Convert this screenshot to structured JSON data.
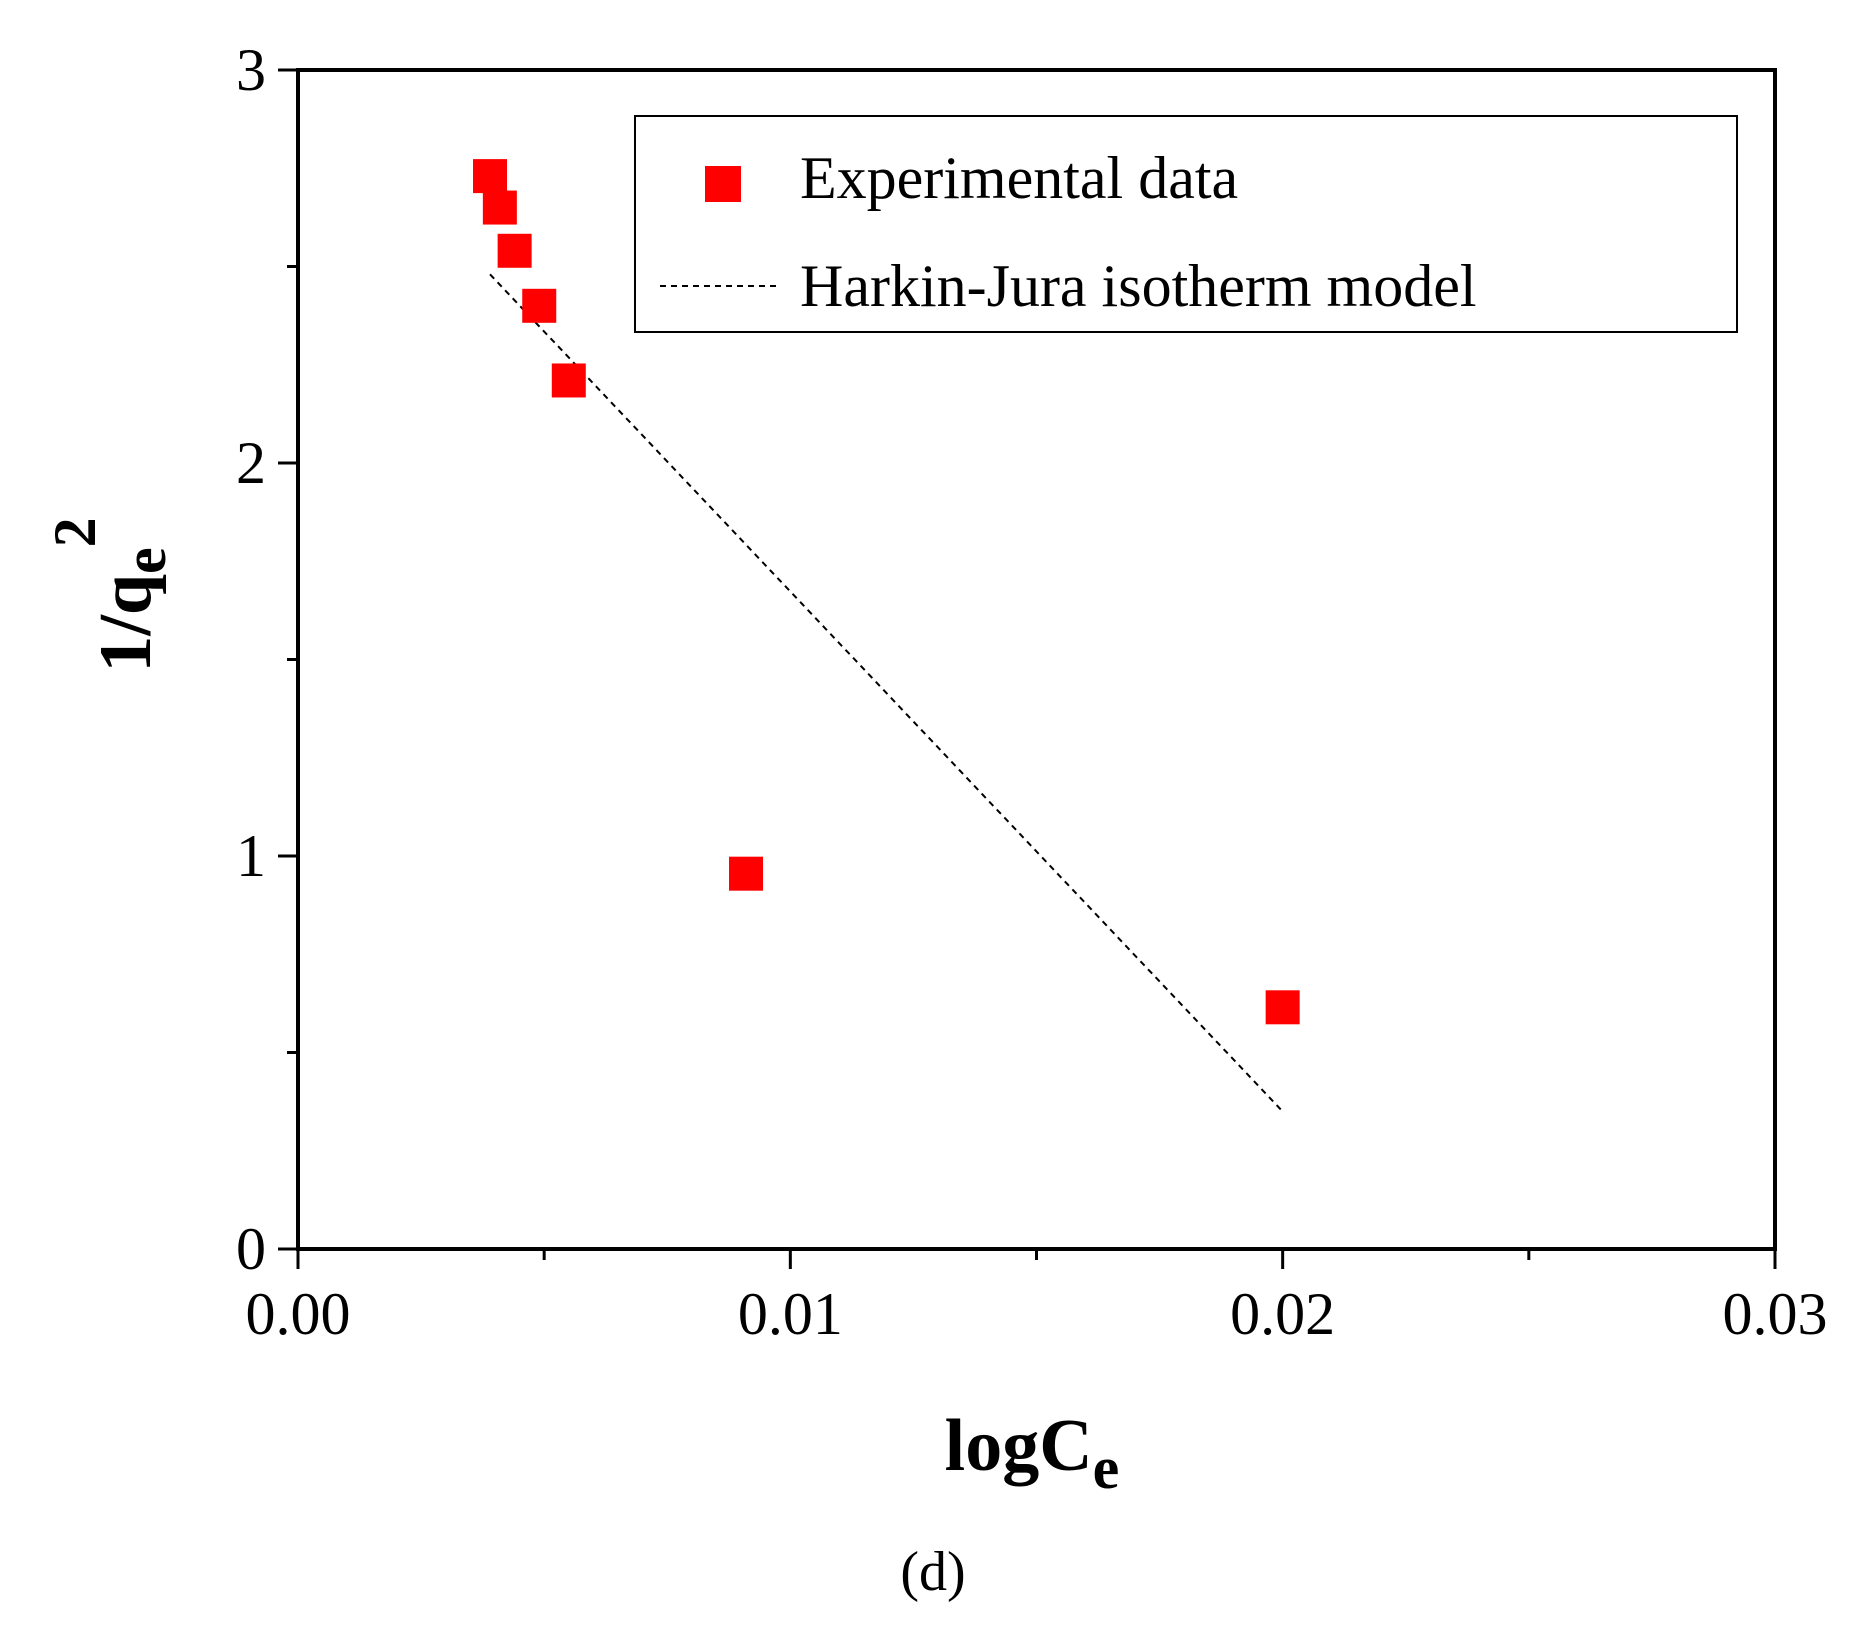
{
  "chart_data": {
    "type": "scatter",
    "panel_label": "(d)",
    "xlabel": {
      "main": "logC",
      "sub": "e"
    },
    "ylabel": {
      "main": "1/q",
      "sub": "e",
      "sup": "2"
    },
    "xlim": [
      0,
      0.03
    ],
    "ylim": [
      0,
      3
    ],
    "xticks": [
      {
        "value": 0.0,
        "label": "0.00"
      },
      {
        "value": 0.01,
        "label": "0.01"
      },
      {
        "value": 0.02,
        "label": "0.02"
      },
      {
        "value": 0.03,
        "label": "0.03"
      }
    ],
    "yticks": [
      {
        "value": 0,
        "label": "0"
      },
      {
        "value": 1,
        "label": "1"
      },
      {
        "value": 2,
        "label": "2"
      },
      {
        "value": 3,
        "label": "3"
      }
    ],
    "xminor": [
      0.005,
      0.015,
      0.025
    ],
    "yminor": [
      0.5,
      1.5,
      2.5
    ],
    "grid": false,
    "legend_position": "top-right",
    "series": [
      {
        "name": "Experimental data",
        "kind": "scatter",
        "marker": "square",
        "color": "#ff0000",
        "points": [
          {
            "x": 0.0039,
            "y": 2.73
          },
          {
            "x": 0.0041,
            "y": 2.65
          },
          {
            "x": 0.0044,
            "y": 2.54
          },
          {
            "x": 0.0049,
            "y": 2.4
          },
          {
            "x": 0.0055,
            "y": 2.21
          },
          {
            "x": 0.0091,
            "y": 0.955
          },
          {
            "x": 0.02,
            "y": 0.615
          }
        ]
      },
      {
        "name": "Harkin-Jura isotherm model",
        "kind": "line",
        "dash": "dashed",
        "color": "#000000",
        "points": [
          {
            "x": 0.0039,
            "y": 2.48
          },
          {
            "x": 0.02,
            "y": 0.35
          }
        ]
      }
    ]
  }
}
